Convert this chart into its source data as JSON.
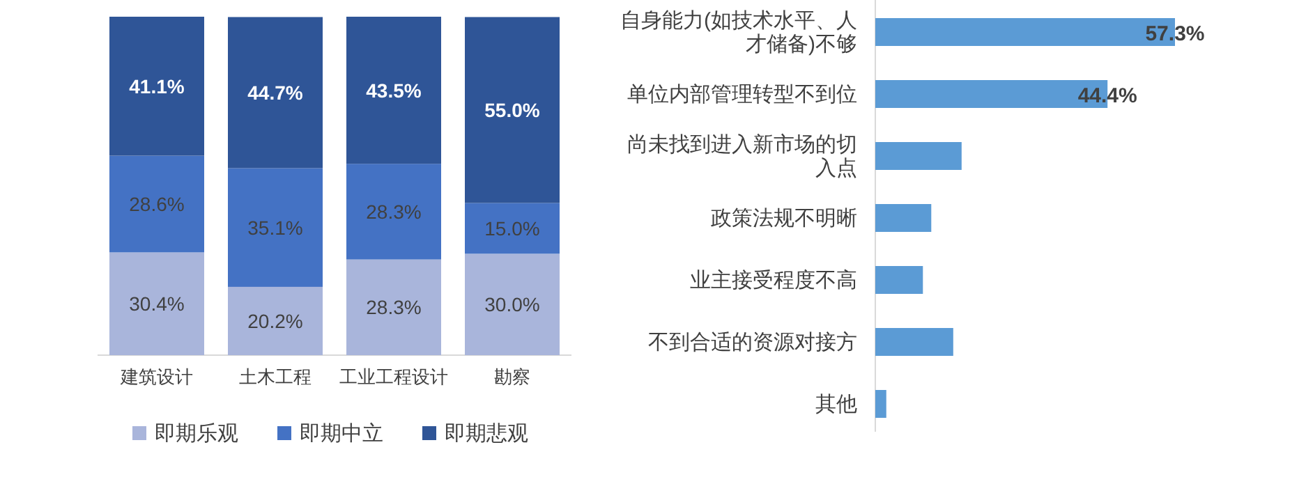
{
  "chart_data": [
    {
      "type": "bar",
      "stacked": true,
      "legend": "bottom",
      "categories": [
        "建筑设计",
        "土木工程",
        "工业工程设计",
        "勘察"
      ],
      "series": [
        {
          "name": "即期乐观",
          "color": "#a9b5db",
          "values": [
            30.4,
            20.2,
            28.3,
            30.0
          ],
          "value_labels": [
            "30.4%",
            "20.2%",
            "28.3%",
            "30.0%"
          ]
        },
        {
          "name": "即期中立",
          "color": "#4472c4",
          "values": [
            28.6,
            35.1,
            28.3,
            15.0
          ],
          "value_labels": [
            "28.6%",
            "35.1%",
            "28.3%",
            "15.0%"
          ]
        },
        {
          "name": "即期悲观",
          "color": "#2f5597",
          "values": [
            41.1,
            44.7,
            43.5,
            55.0
          ],
          "value_labels": [
            "41.1%",
            "44.7%",
            "43.5%",
            "55.0%"
          ]
        }
      ]
    },
    {
      "type": "bar",
      "orientation": "horizontal",
      "color": "#5b9bd5",
      "categories": [
        "自身能力(如技术水平、人才储备)不够",
        "单位内部管理转型不到位",
        "尚未找到进入新市场的切入点",
        "政策法规不明晰",
        "业主接受程度不高",
        "不到合适的资源对接方",
        "其他"
      ],
      "values": [
        57.3,
        44.4,
        16.5,
        10.7,
        9.1,
        14.9,
        2.1
      ],
      "value_labels": [
        "57.3%",
        "44.4%",
        null,
        null,
        null,
        null,
        null
      ]
    }
  ]
}
